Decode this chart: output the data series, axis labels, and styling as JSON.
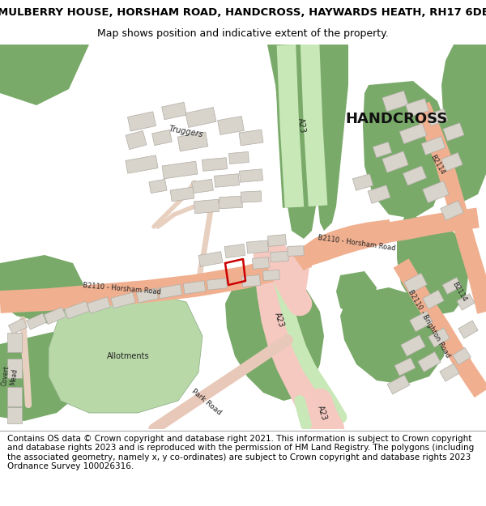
{
  "title": "MULBERRY HOUSE, HORSHAM ROAD, HANDCROSS, HAYWARDS HEATH, RH17 6DE",
  "subtitle": "Map shows position and indicative extent of the property.",
  "footer": "Contains OS data © Crown copyright and database right 2021. This information is subject to Crown copyright and database rights 2023 and is reproduced with the permission of HM Land Registry. The polygons (including the associated geometry, namely x, y co-ordinates) are subject to Crown copyright and database rights 2023 Ordnance Survey 100026316.",
  "bg_color": "#ffffff",
  "map_bg": "#f5f3f0",
  "road_orange": "#f0b090",
  "road_pink": "#f5c8c0",
  "road_green_strip": "#c8e8b8",
  "green_dark": "#7aaa6a",
  "green_light": "#b8d8a8",
  "building_color": "#d8d4cc",
  "building_outline": "#b8b4ac",
  "red_plot": "#cc0000",
  "title_fontsize": 9.5,
  "subtitle_fontsize": 9,
  "footer_fontsize": 7.5
}
